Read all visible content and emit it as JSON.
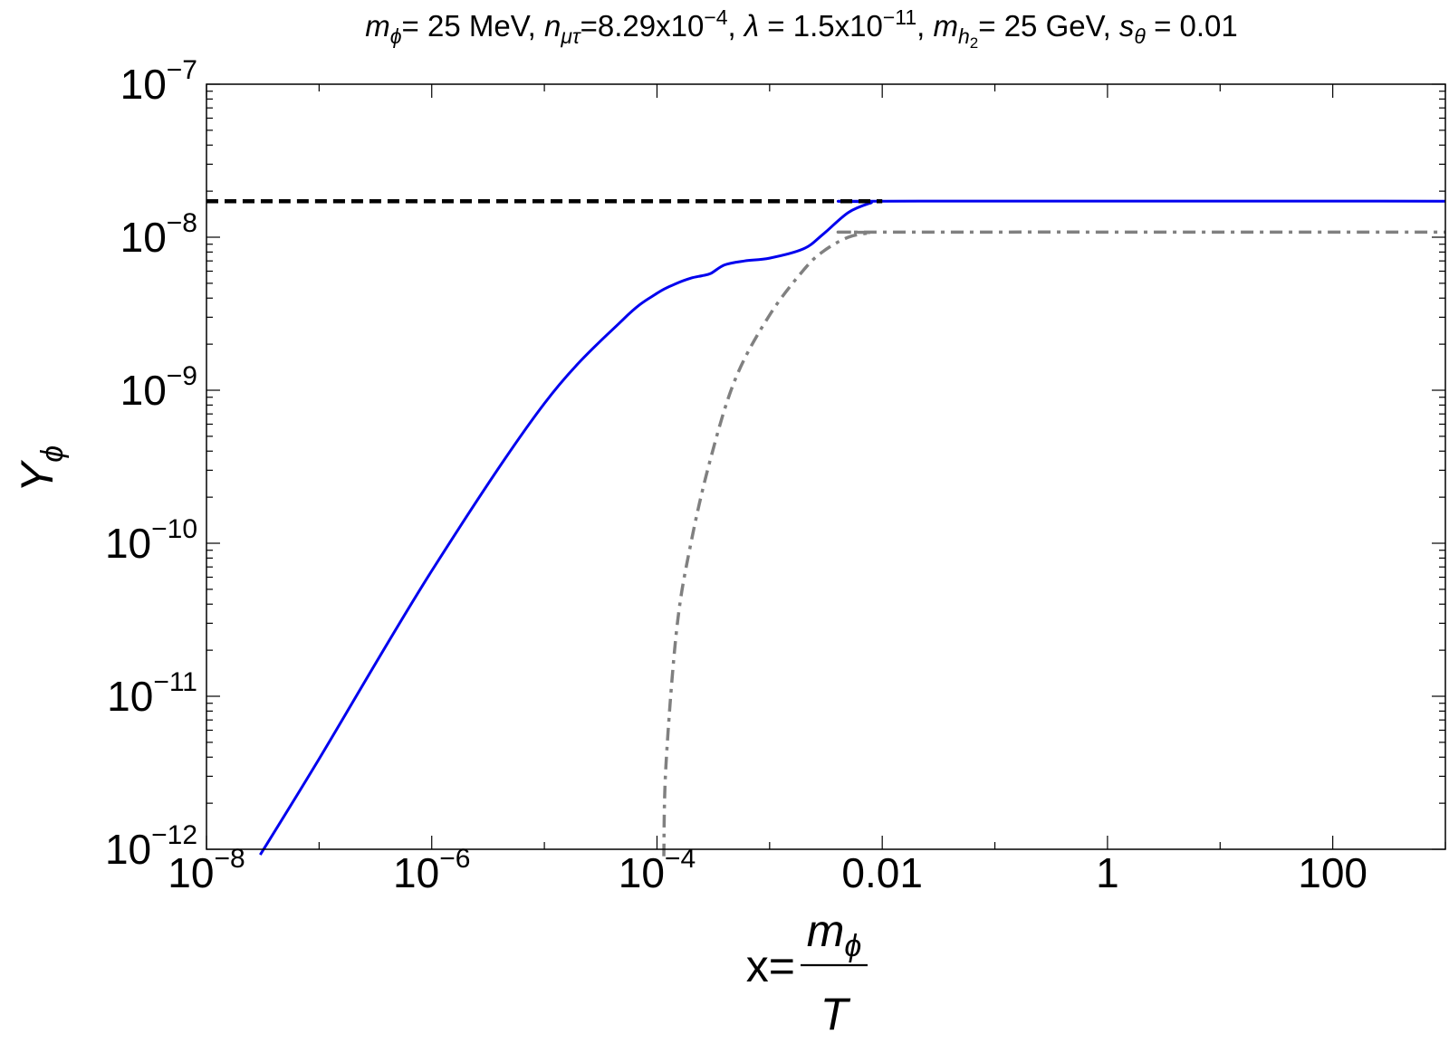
{
  "chart_data": {
    "type": "line",
    "title_parts": [
      {
        "t": "m",
        "italic": true
      },
      {
        "t": "ϕ",
        "italic": true,
        "sub": true
      },
      {
        "t": "= 25 MeV, "
      },
      {
        "t": "n",
        "italic": true
      },
      {
        "t": "μτ",
        "italic": true,
        "sub": true
      },
      {
        "t": "=8.29x10"
      },
      {
        "t": "−4",
        "sup": true
      },
      {
        "t": ", "
      },
      {
        "t": "λ",
        "italic": true
      },
      {
        "t": " = 1.5x10"
      },
      {
        "t": "−11",
        "sup": true
      },
      {
        "t": ", "
      },
      {
        "t": "m",
        "italic": true
      },
      {
        "t": "h",
        "italic": true,
        "sub": true
      },
      {
        "t": "2",
        "subsub": true
      },
      {
        "t": "= 25 GeV, "
      },
      {
        "t": "s",
        "italic": true
      },
      {
        "t": "θ",
        "italic": true,
        "sub": true
      },
      {
        "t": " = 0.01"
      }
    ],
    "xlabel": {
      "prefix": "x=",
      "numerator": "m",
      "numerator_sub": "ϕ",
      "denominator": "T"
    },
    "ylabel": {
      "main": "Y",
      "sub": "ϕ"
    },
    "x_scale": "log",
    "y_scale": "log",
    "xlim": [
      1e-08,
      1000
    ],
    "ylim": [
      1e-12,
      1e-07
    ],
    "x_ticks": [
      {
        "value": 1e-08,
        "base": "10",
        "exp": "−8"
      },
      {
        "value": 1e-06,
        "base": "10",
        "exp": "−6"
      },
      {
        "value": 0.0001,
        "base": "10",
        "exp": "−4"
      },
      {
        "value": 0.01,
        "base": "0.01",
        "exp": ""
      },
      {
        "value": 1,
        "base": "1",
        "exp": ""
      },
      {
        "value": 100,
        "base": "100",
        "exp": ""
      }
    ],
    "y_ticks": [
      {
        "value": 1e-12,
        "base": "10",
        "exp": "−12"
      },
      {
        "value": 1e-11,
        "base": "10",
        "exp": "−11"
      },
      {
        "value": 1e-10,
        "base": "10",
        "exp": "−10"
      },
      {
        "value": 1e-09,
        "base": "10",
        "exp": "−9"
      },
      {
        "value": 1e-08,
        "base": "10",
        "exp": "−8"
      },
      {
        "value": 1e-07,
        "base": "10",
        "exp": "−7"
      }
    ],
    "grid": false,
    "series": [
      {
        "style": "solid",
        "color": "#0000ee",
        "points": [
          [
            3e-08,
            9.2e-13
          ],
          [
            1e-07,
            3.9e-12
          ],
          [
            1e-06,
            6.6e-11
          ],
          [
            1e-05,
            8.2e-10
          ],
          [
            5e-05,
            2.9e-09
          ],
          [
            0.0001,
            4.3e-09
          ],
          [
            0.00015,
            5e-09
          ],
          [
            0.0002,
            5.4e-09
          ],
          [
            0.00025,
            5.6e-09
          ],
          [
            0.0003,
            5.8e-09
          ],
          [
            0.0004,
            6.6e-09
          ],
          [
            0.0006,
            7e-09
          ],
          [
            0.001,
            7.3e-09
          ],
          [
            0.002,
            8.4e-09
          ],
          [
            0.003,
            1.05e-08
          ],
          [
            0.005,
            1.45e-08
          ],
          [
            0.008,
            1.68e-08
          ],
          [
            0.01,
            1.72e-08
          ],
          [
            1000,
            1.72e-08
          ]
        ]
      },
      {
        "style": "dashdot",
        "color": "#808080",
        "points": [
          [
            0.000115,
            9e-13
          ],
          [
            0.00012,
            3.5e-12
          ],
          [
            0.00015,
            2.8e-11
          ],
          [
            0.0002,
            1e-10
          ],
          [
            0.0003,
            3.6e-10
          ],
          [
            0.0005,
            1.2e-09
          ],
          [
            0.001,
            3.1e-09
          ],
          [
            0.002,
            6.1e-09
          ],
          [
            0.003,
            8.1e-09
          ],
          [
            0.005,
            1e-08
          ],
          [
            0.008,
            1.07e-08
          ],
          [
            0.01,
            1.08e-08
          ],
          [
            1000,
            1.08e-08
          ]
        ]
      },
      {
        "style": "dashed",
        "color": "#000000",
        "points": [
          [
            1e-08,
            1.72e-08
          ],
          [
            0.01,
            1.72e-08
          ]
        ]
      }
    ]
  }
}
